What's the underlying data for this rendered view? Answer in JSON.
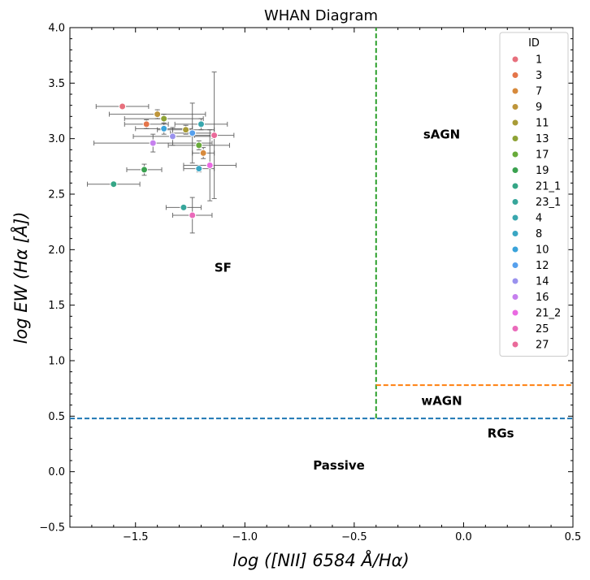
{
  "chart_data": {
    "type": "scatter",
    "title": "WHAN Diagram",
    "xlabel": "log ([NII] 6584 Å/Hα)",
    "ylabel": "log EW (Hα [Å])",
    "xlim": [
      -1.8,
      0.5
    ],
    "ylim": [
      -0.5,
      4.0
    ],
    "x_ticks": [
      "−1.5",
      "−1.0",
      "−0.5",
      "0.0",
      "0.5"
    ],
    "x_tick_values": [
      -1.5,
      -1.0,
      -0.5,
      0.0,
      0.5
    ],
    "y_ticks": [
      "−0.5",
      "0.0",
      "0.5",
      "1.0",
      "1.5",
      "2.0",
      "2.5",
      "3.0",
      "3.5",
      "4.0"
    ],
    "y_tick_values": [
      -0.5,
      0.0,
      0.5,
      1.0,
      1.5,
      2.0,
      2.5,
      3.0,
      3.5,
      4.0
    ],
    "legend_title": "ID",
    "legend_position": "top-right",
    "region_labels": [
      {
        "text": "sAGN",
        "x": -0.1,
        "y": 3.0
      },
      {
        "text": "SF",
        "x": -1.1,
        "y": 1.8
      },
      {
        "text": "wAGN",
        "x": -0.1,
        "y": 0.6
      },
      {
        "text": "RGs",
        "x": 0.17,
        "y": 0.31
      },
      {
        "text": "Passive",
        "x": -0.57,
        "y": 0.02
      }
    ],
    "lines": [
      {
        "name": "sf-agn-divider",
        "color": "#2ca02c",
        "x": -0.4,
        "y_from": 0.48,
        "y_to": 4.0
      },
      {
        "name": "sagn-wagn-divider",
        "color": "#ff7f0e",
        "y": 0.78,
        "x_from": -0.4,
        "x_to": 0.5
      },
      {
        "name": "passive-divider",
        "color": "#1f77b4",
        "y": 0.48,
        "x_from": -1.8,
        "x_to": 0.5
      }
    ],
    "points": [
      {
        "id": "1",
        "color": "#e7707d",
        "x": -1.56,
        "y": 3.29,
        "xerr": 0.12,
        "yerr": 0.02
      },
      {
        "id": "3",
        "color": "#e4754a",
        "x": -1.45,
        "y": 3.13,
        "xerr": 0.1,
        "yerr": 0.04
      },
      {
        "id": "7",
        "color": "#d78a3c",
        "x": -1.19,
        "y": 2.87,
        "xerr": 0.05,
        "yerr": 0.05
      },
      {
        "id": "9",
        "color": "#be953a",
        "x": -1.4,
        "y": 3.22,
        "xerr": 0.22,
        "yerr": 0.04
      },
      {
        "id": "11",
        "color": "#a89b36",
        "x": -1.27,
        "y": 3.08,
        "xerr": 0.13,
        "yerr": 0.04
      },
      {
        "id": "13",
        "color": "#8ea235",
        "x": -1.37,
        "y": 3.18,
        "xerr": 0.18,
        "yerr": 0.04
      },
      {
        "id": "17",
        "color": "#68ab3a",
        "x": -1.21,
        "y": 2.94,
        "xerr": 0.14,
        "yerr": 0.04
      },
      {
        "id": "19",
        "color": "#3aa14f",
        "x": -1.46,
        "y": 2.72,
        "xerr": 0.08,
        "yerr": 0.05
      },
      {
        "id": "21_1",
        "color": "#35a686",
        "x": -1.6,
        "y": 2.59,
        "xerr": 0.12,
        "yerr": 0.01
      },
      {
        "id": "23_1",
        "color": "#37a69b",
        "x": -1.28,
        "y": 2.38,
        "xerr": 0.08,
        "yerr": 0.02
      },
      {
        "id": "4",
        "color": "#39a7ae",
        "x": -1.2,
        "y": 3.13,
        "xerr": 0.12,
        "yerr": 0.05
      },
      {
        "id": "8",
        "color": "#3aa6c3",
        "x": -1.21,
        "y": 2.73,
        "xerr": 0.07,
        "yerr": 0.03
      },
      {
        "id": "10",
        "color": "#3aa3da",
        "x": -1.37,
        "y": 3.09,
        "xerr": 0.13,
        "yerr": 0.05
      },
      {
        "id": "12",
        "color": "#56a0ed",
        "x": -1.24,
        "y": 3.05,
        "xerr": 0.1,
        "yerr": 0.27
      },
      {
        "id": "14",
        "color": "#9a92ee",
        "x": -1.33,
        "y": 3.02,
        "xerr": 0.18,
        "yerr": 0.08
      },
      {
        "id": "16",
        "color": "#c680ee",
        "x": -1.42,
        "y": 2.96,
        "xerr": 0.27,
        "yerr": 0.08
      },
      {
        "id": "21_2",
        "color": "#ea6ae2",
        "x": -1.16,
        "y": 2.76,
        "xerr": 0.12,
        "yerr": 0.32
      },
      {
        "id": "25",
        "color": "#ea6aba",
        "x": -1.24,
        "y": 2.31,
        "xerr": 0.09,
        "yerr": 0.16
      },
      {
        "id": "27",
        "color": "#ea6a9a",
        "x": -1.14,
        "y": 3.03,
        "xerr": 0.09,
        "yerr": 0.57
      }
    ]
  }
}
